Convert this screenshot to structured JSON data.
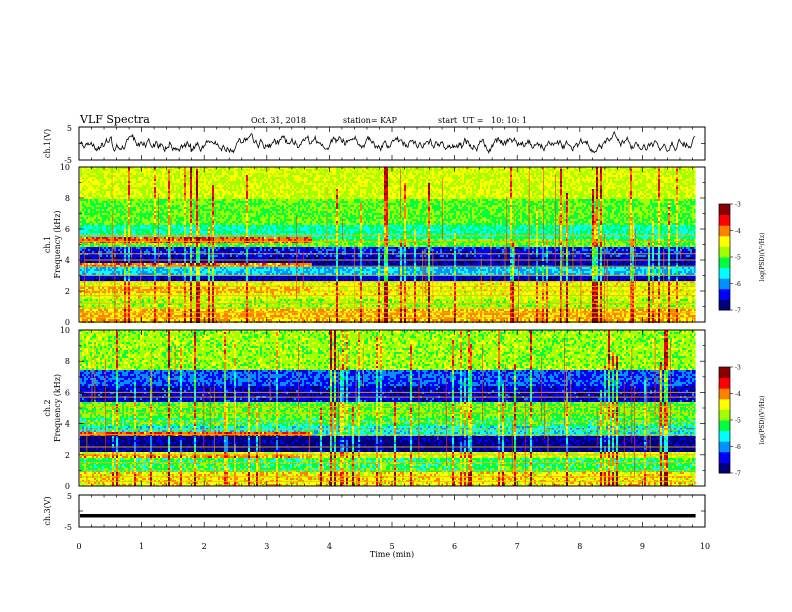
{
  "header": {
    "title": "VLF Spectra",
    "date": "Oct. 31, 2018",
    "station": "station= KAP",
    "start": "start  UT =   10: 10: 1"
  },
  "chart_data": [
    {
      "type": "line",
      "name": "ch1-waveform",
      "ylabel": "ch.1(V)",
      "ylim": [
        -5,
        5
      ],
      "yticks": [
        "5",
        "-5"
      ],
      "xlim": [
        0,
        10
      ],
      "data_end_min": 9.85,
      "description_values": {
        "baseline": 0,
        "typical_min": -2,
        "typical_max": 2
      }
    },
    {
      "type": "heatmap",
      "name": "ch1-spectrogram",
      "ylabel": "ch.1\nFrequency  (kHz)",
      "ylim": [
        0,
        10
      ],
      "yticks": [
        "0",
        "2",
        "4",
        "6",
        "8",
        "10"
      ],
      "xlim": [
        0,
        10
      ],
      "data_end_min": 9.85,
      "colorbar": {
        "label": "log(PSD)(V²/Hz)",
        "range": [
          -7,
          -3
        ],
        "ticks": [
          "-3",
          "-4",
          "-5",
          "-6",
          "-7"
        ]
      },
      "lines_khz": [
        0.3,
        0.6,
        0.9,
        1.2,
        1.7,
        2.0,
        2.3,
        2.6,
        3.0,
        3.6,
        4.0,
        4.4,
        5.2,
        5.6
      ],
      "bands": [
        {
          "lo": 0,
          "hi": 0.8,
          "level": 0.7
        },
        {
          "lo": 0.8,
          "hi": 1.5,
          "level": 0.55
        },
        {
          "lo": 1.5,
          "hi": 2.6,
          "level": 0.62
        },
        {
          "lo": 2.6,
          "hi": 3.0,
          "level": 0.1
        },
        {
          "lo": 3.0,
          "hi": 3.6,
          "level": 0.3
        },
        {
          "lo": 3.6,
          "hi": 4.2,
          "level": 0.08
        },
        {
          "lo": 4.2,
          "hi": 4.8,
          "level": 0.15
        },
        {
          "lo": 4.8,
          "hi": 5.3,
          "level": 0.5
        },
        {
          "lo": 5.3,
          "hi": 6.2,
          "level": 0.4
        },
        {
          "lo": 6.2,
          "hi": 8.0,
          "level": 0.5
        },
        {
          "lo": 8.0,
          "hi": 10.0,
          "level": 0.6
        }
      ],
      "early_bands": [
        {
          "lo": 5.1,
          "hi": 5.5,
          "level": 0.78,
          "until": 3.7
        },
        {
          "lo": 3.5,
          "hi": 3.8,
          "level": 0.75,
          "until": 3.7
        },
        {
          "lo": 1.9,
          "hi": 2.2,
          "level": 0.7,
          "until": 3.7
        }
      ]
    },
    {
      "type": "heatmap",
      "name": "ch2-spectrogram",
      "ylabel": "ch.2\nFrequency  (kHz)",
      "ylim": [
        0,
        10
      ],
      "yticks": [
        "0",
        "2",
        "4",
        "6",
        "8",
        "10"
      ],
      "xlim": [
        0,
        10
      ],
      "data_end_min": 9.85,
      "colorbar": {
        "label": "log(PSD)(V²/Hz)",
        "range": [
          -7,
          -3
        ],
        "ticks": [
          "-3",
          "-4",
          "-5",
          "-6",
          "-7"
        ]
      },
      "lines_khz": [
        0.3,
        0.6,
        1.0,
        1.5,
        2.0,
        2.5,
        3.3,
        3.6,
        4.1,
        4.7,
        5.1,
        5.7,
        6.0
      ],
      "bands": [
        {
          "lo": 0,
          "hi": 0.9,
          "level": 0.65
        },
        {
          "lo": 0.9,
          "hi": 1.8,
          "level": 0.45
        },
        {
          "lo": 1.8,
          "hi": 2.2,
          "level": 0.6
        },
        {
          "lo": 2.2,
          "hi": 3.2,
          "level": 0.05
        },
        {
          "lo": 3.2,
          "hi": 3.8,
          "level": 0.35
        },
        {
          "lo": 3.8,
          "hi": 4.4,
          "level": 0.45
        },
        {
          "lo": 4.4,
          "hi": 5.4,
          "level": 0.5
        },
        {
          "lo": 5.4,
          "hi": 6.4,
          "level": 0.12
        },
        {
          "lo": 6.4,
          "hi": 7.4,
          "level": 0.2
        },
        {
          "lo": 7.4,
          "hi": 10.0,
          "level": 0.55
        }
      ],
      "early_bands": [
        {
          "lo": 3.2,
          "hi": 3.5,
          "level": 0.78,
          "until": 3.7
        },
        {
          "lo": 1.8,
          "hi": 2.0,
          "level": 0.72,
          "until": 3.7
        }
      ]
    },
    {
      "type": "line",
      "name": "ch3-waveform",
      "ylabel": "ch.3(V)",
      "ylim": [
        -5,
        5
      ],
      "yticks": [
        "5",
        "-5"
      ],
      "xlim": [
        0,
        10
      ],
      "data_end_min": 9.85,
      "constant_value": -1.5
    }
  ],
  "xaxis": {
    "label": "Time  (min)",
    "ticks": [
      "0",
      "1",
      "2",
      "3",
      "4",
      "5",
      "6",
      "7",
      "8",
      "9",
      "10"
    ]
  },
  "colors": {
    "colormap": [
      "#00007a",
      "#0000ff",
      "#0090ff",
      "#00ffff",
      "#00ff40",
      "#a0ff00",
      "#ffff00",
      "#ff8000",
      "#ff0000",
      "#8a0000"
    ]
  }
}
